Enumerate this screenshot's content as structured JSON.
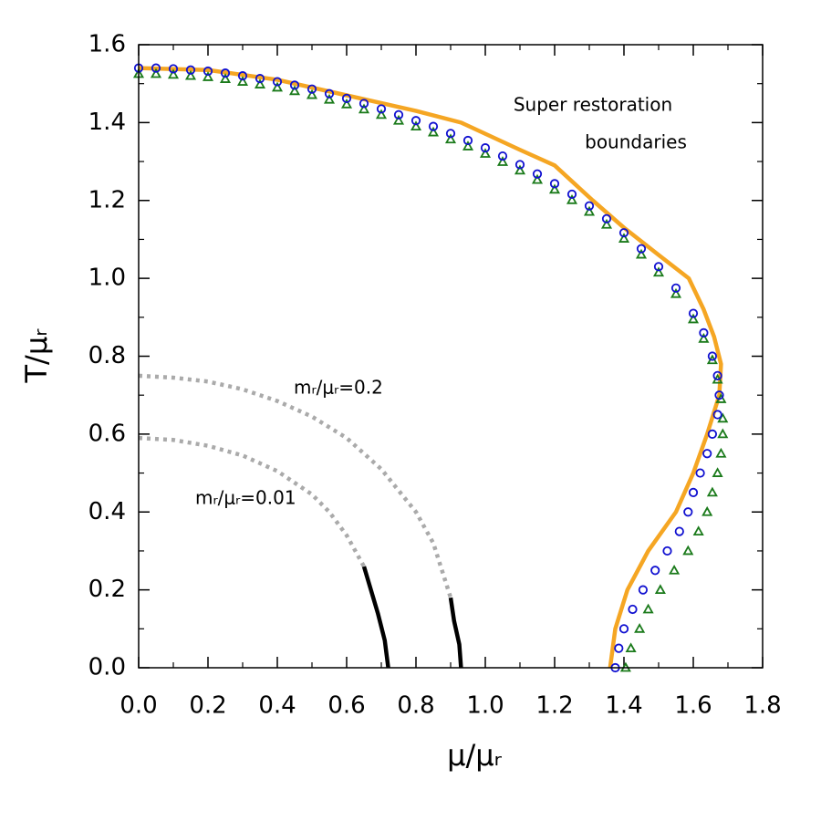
{
  "chart_data": {
    "type": "line",
    "xlabel": "μ/μᵣ",
    "ylabel": "T/μᵣ",
    "annotations": [
      "Super restoration",
      "boundaries",
      "mᵣ/μᵣ=0.2",
      "mᵣ/μᵣ=0.01"
    ],
    "xlim": [
      0,
      1.8
    ],
    "ylim": [
      0,
      1.6
    ],
    "xticks": [
      {
        "value": 0,
        "label": "0.0"
      },
      0.2,
      0.4,
      0.6,
      0.8,
      {
        "value": 1,
        "label": "1.0"
      },
      1.2,
      1.4,
      1.6,
      1.8
    ],
    "yticks": [
      {
        "value": 0,
        "label": "0.0"
      },
      0.2,
      0.4,
      0.6,
      0.8,
      {
        "value": 1,
        "label": "1.0"
      },
      1.2,
      1.4,
      1.6
    ],
    "series": [
      {
        "color": "#f5a623",
        "marker": null,
        "dashed": false,
        "x": [
          0,
          0.2,
          0.4,
          0.6,
          0.8,
          0.93,
          1.1,
          1.2,
          1.31,
          1.4,
          1.5,
          1.587,
          1.63,
          1.66,
          1.68,
          1.675,
          1.64,
          1.6,
          1.55,
          1.47,
          1.41,
          1.375,
          1.36
        ],
        "values": [
          1.54,
          1.535,
          1.51,
          1.47,
          1.43,
          1.4,
          1.33,
          1.29,
          1.2,
          1.13,
          1.06,
          1.0,
          0.92,
          0.85,
          0.78,
          0.7,
          0.6,
          0.5,
          0.4,
          0.3,
          0.2,
          0.1,
          0.0
        ]
      },
      {
        "color": "#1a7a1a",
        "marker": "triangle",
        "dashed": false,
        "x": [
          0,
          0.05,
          0.1,
          0.15,
          0.2,
          0.25,
          0.3,
          0.35,
          0.4,
          0.45,
          0.5,
          0.55,
          0.6,
          0.65,
          0.7,
          0.75,
          0.8,
          0.85,
          0.9,
          0.95,
          1.0,
          1.05,
          1.1,
          1.15,
          1.2,
          1.25,
          1.3,
          1.35,
          1.4,
          1.45,
          1.5,
          1.55,
          1.6,
          1.63,
          1.655,
          1.67,
          1.68,
          1.685,
          1.685,
          1.68,
          1.67,
          1.655,
          1.64,
          1.615,
          1.585,
          1.545,
          1.505,
          1.47,
          1.445,
          1.42,
          1.405
        ],
        "values": [
          1.525,
          1.525,
          1.523,
          1.52,
          1.517,
          1.512,
          1.505,
          1.498,
          1.49,
          1.481,
          1.471,
          1.459,
          1.447,
          1.434,
          1.42,
          1.405,
          1.39,
          1.375,
          1.357,
          1.339,
          1.32,
          1.299,
          1.277,
          1.253,
          1.228,
          1.201,
          1.171,
          1.138,
          1.102,
          1.061,
          1.015,
          0.96,
          0.895,
          0.845,
          0.79,
          0.74,
          0.69,
          0.64,
          0.6,
          0.55,
          0.5,
          0.45,
          0.4,
          0.35,
          0.3,
          0.25,
          0.2,
          0.15,
          0.1,
          0.05,
          0.0
        ]
      },
      {
        "color": "#1010d0",
        "marker": "circle",
        "dashed": false,
        "x": [
          0,
          0.05,
          0.1,
          0.15,
          0.2,
          0.25,
          0.3,
          0.35,
          0.4,
          0.45,
          0.5,
          0.55,
          0.6,
          0.65,
          0.7,
          0.75,
          0.8,
          0.85,
          0.9,
          0.95,
          1.0,
          1.05,
          1.1,
          1.15,
          1.2,
          1.25,
          1.3,
          1.35,
          1.4,
          1.45,
          1.5,
          1.55,
          1.6,
          1.63,
          1.655,
          1.67,
          1.675,
          1.67,
          1.655,
          1.64,
          1.62,
          1.6,
          1.585,
          1.56,
          1.525,
          1.49,
          1.455,
          1.425,
          1.4,
          1.385,
          1.375
        ],
        "values": [
          1.54,
          1.54,
          1.538,
          1.535,
          1.532,
          1.527,
          1.52,
          1.513,
          1.505,
          1.496,
          1.486,
          1.474,
          1.462,
          1.449,
          1.435,
          1.42,
          1.405,
          1.39,
          1.372,
          1.354,
          1.335,
          1.314,
          1.292,
          1.268,
          1.243,
          1.216,
          1.186,
          1.153,
          1.117,
          1.076,
          1.03,
          0.975,
          0.91,
          0.86,
          0.8,
          0.75,
          0.7,
          0.65,
          0.6,
          0.55,
          0.5,
          0.45,
          0.4,
          0.35,
          0.3,
          0.25,
          0.2,
          0.15,
          0.1,
          0.05,
          0.0
        ]
      },
      {
        "color": "#aaaaaa",
        "marker": null,
        "dashed": true,
        "x": [
          0,
          0.1,
          0.2,
          0.3,
          0.4,
          0.5,
          0.6,
          0.7,
          0.8,
          0.85,
          0.9
        ],
        "values": [
          0.75,
          0.745,
          0.735,
          0.715,
          0.685,
          0.645,
          0.59,
          0.51,
          0.4,
          0.32,
          0.18
        ]
      },
      {
        "color": "#aaaaaa",
        "marker": null,
        "dashed": true,
        "x": [
          0,
          0.1,
          0.2,
          0.3,
          0.4,
          0.5,
          0.55,
          0.6,
          0.65
        ],
        "values": [
          0.59,
          0.585,
          0.57,
          0.545,
          0.505,
          0.445,
          0.4,
          0.34,
          0.26
        ]
      },
      {
        "color": "#000000",
        "marker": null,
        "dashed": false,
        "x": [
          0.65,
          0.67,
          0.69,
          0.71,
          0.72
        ],
        "values": [
          0.26,
          0.2,
          0.14,
          0.07,
          0.0
        ]
      },
      {
        "color": "#000000",
        "marker": null,
        "dashed": false,
        "x": [
          0.9,
          0.91,
          0.925,
          0.93
        ],
        "values": [
          0.18,
          0.12,
          0.06,
          0.0
        ]
      }
    ]
  }
}
